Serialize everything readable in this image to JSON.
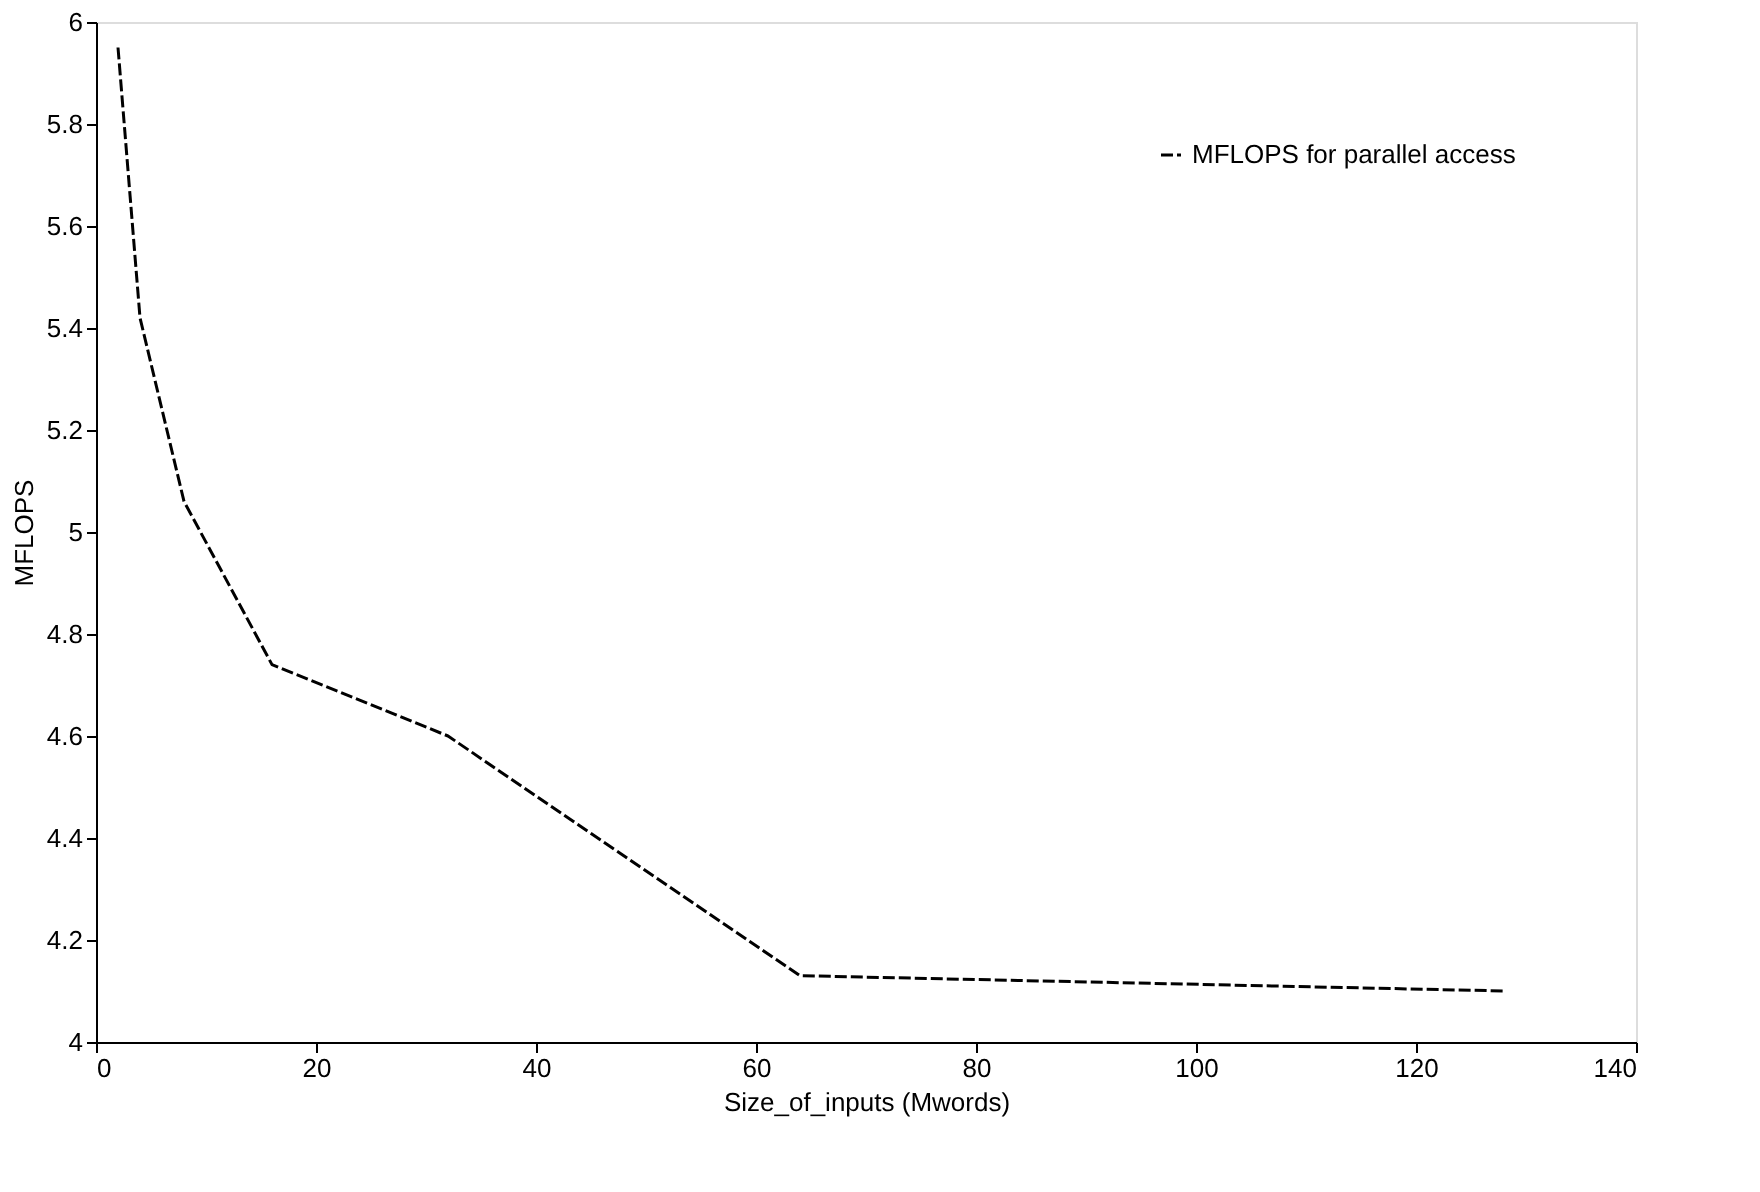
{
  "chart_data": {
    "type": "line",
    "xlabel": "Size_of_inputs (Mwords)",
    "ylabel": "MFLOPS",
    "x": [
      2,
      4,
      8,
      16,
      32,
      64,
      128
    ],
    "series": [
      {
        "name": "MFLOPS for parallel access",
        "color": "#000000",
        "values": [
          5.95,
          5.42,
          5.06,
          4.74,
          4.6,
          4.13,
          4.1
        ]
      }
    ],
    "xlim": [
      0,
      140
    ],
    "xticks": [
      0,
      20,
      40,
      60,
      80,
      100,
      120,
      140
    ],
    "ylim": [
      4,
      6
    ],
    "yticks": [
      4,
      4.2,
      4.4,
      4.6,
      4.8,
      5,
      5.2,
      5.4,
      5.6,
      5.8,
      6
    ],
    "grid": false,
    "legend": "top right",
    "line_style": "dashed",
    "marker": "none"
  }
}
